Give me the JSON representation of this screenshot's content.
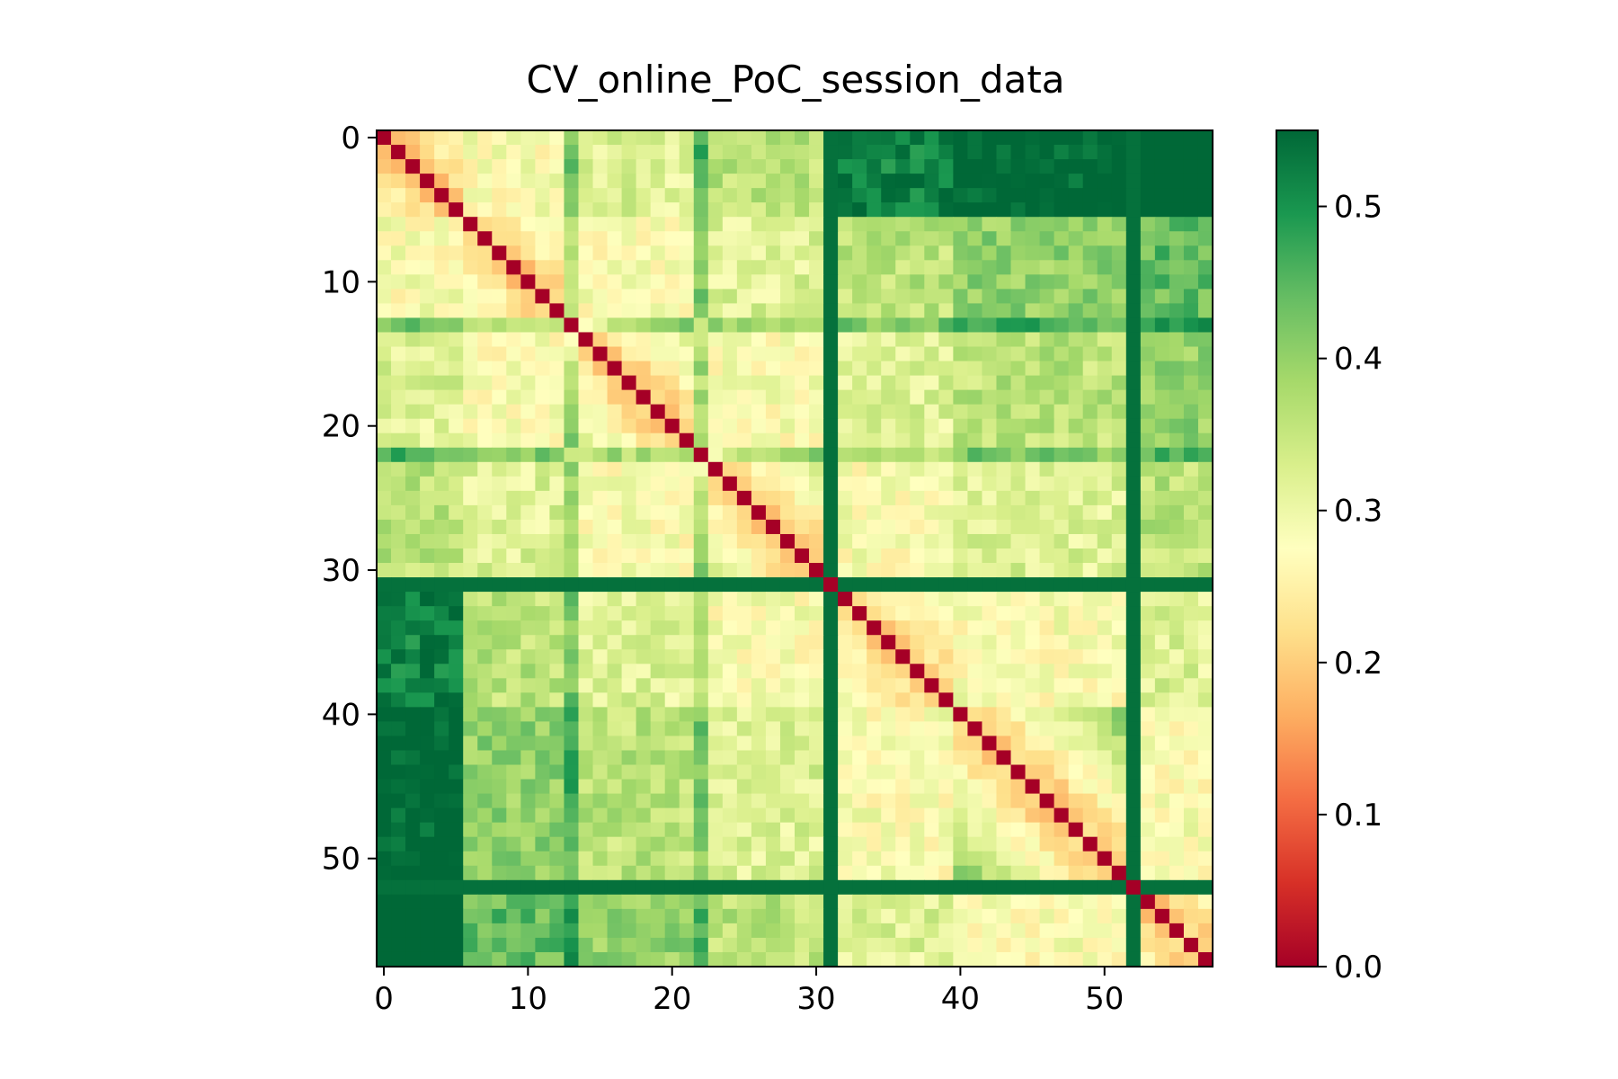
{
  "chart_data": {
    "type": "heatmap",
    "title": "CV_online_PoC_session_data",
    "xlabel": "",
    "ylabel": "",
    "size": 58,
    "x_ticks": [
      "0",
      "10",
      "20",
      "30",
      "40",
      "50"
    ],
    "x_tick_values": [
      0,
      10,
      20,
      30,
      40,
      50
    ],
    "y_ticks": [
      "0",
      "10",
      "20",
      "30",
      "40",
      "50"
    ],
    "y_tick_values": [
      0,
      10,
      20,
      30,
      40,
      50
    ],
    "colorbar": {
      "colormap": "RdYlGn",
      "range": [
        0,
        0.55
      ],
      "ticks": [
        "0.0",
        "0.1",
        "0.2",
        "0.3",
        "0.4",
        "0.5"
      ],
      "tick_values": [
        0.0,
        0.1,
        0.2,
        0.3,
        0.4,
        0.5
      ]
    },
    "value_model": {
      "baseline": 0.28,
      "diagonal": 0.0,
      "block_edges": [
        0,
        6,
        13,
        22,
        31,
        40,
        52,
        58
      ],
      "within_block": 0.15,
      "between_block_base": 0.38,
      "high_rows": [
        31,
        52
      ],
      "high_value": 0.54,
      "note_free": ""
    }
  }
}
